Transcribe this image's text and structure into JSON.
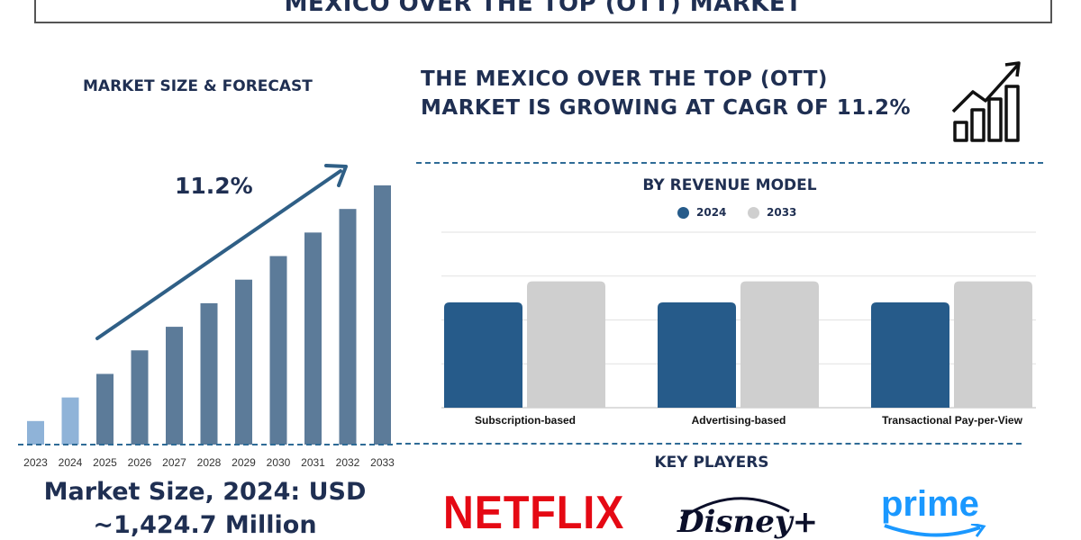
{
  "header": {
    "title": "MEXICO OVER THE TOP (OTT) MARKET"
  },
  "left_panel": {
    "heading": "MARKET SIZE & FORECAST",
    "cagr_label": "11.2%",
    "market_size_line1": "Market Size, 2024: USD",
    "market_size_line2": "~1,424.7 Million"
  },
  "right_panel": {
    "headline_line1": "THE MEXICO OVER THE TOP (OTT)",
    "headline_line2": "MARKET IS GROWING AT CAGR OF 11.2%"
  },
  "revenue_section": {
    "heading": "BY REVENUE MODEL"
  },
  "key_players": {
    "heading": "KEY PLAYERS",
    "players": [
      "NETFLIX",
      "Disney+",
      "prime"
    ]
  },
  "colors": {
    "title_text": "#1f2f52",
    "bar_light": "#8fb3d8",
    "bar_dark": "#5c7b99",
    "series_2024": "#265b8a",
    "series_2033": "#cfcfcf",
    "netflix_red": "#e50914",
    "prime_blue": "#1a98ff"
  },
  "chart_data": [
    {
      "type": "bar",
      "title": "MARKET SIZE & FORECAST",
      "categories": [
        "2023",
        "2024",
        "2025",
        "2026",
        "2027",
        "2028",
        "2029",
        "2030",
        "2031",
        "2032",
        "2033"
      ],
      "values": [
        1.0,
        2.0,
        3.0,
        4.0,
        5.0,
        6.0,
        7.0,
        8.0,
        9.0,
        10.0,
        11.0
      ],
      "annotation": "11.2%",
      "grid": false
    },
    {
      "type": "bar",
      "title": "BY REVENUE MODEL",
      "categories": [
        "Subscription-based",
        "Advertising-based",
        "Transactional Pay-per-View"
      ],
      "series": [
        {
          "name": "2024",
          "values": [
            60,
            60,
            60
          ]
        },
        {
          "name": "2033",
          "values": [
            72,
            72,
            72
          ]
        }
      ],
      "ylim": [
        0,
        100
      ],
      "legend": "top-center",
      "grid": true
    }
  ]
}
